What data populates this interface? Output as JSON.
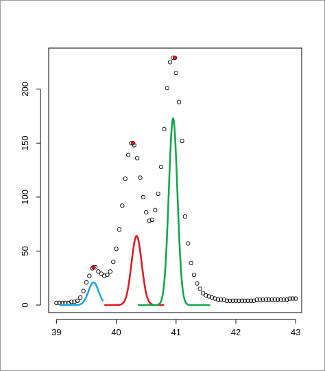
{
  "chart_data": {
    "type": "scatter",
    "title": "",
    "xlabel": "",
    "ylabel": "",
    "xlim": [
      38.87,
      43.1
    ],
    "ylim": [
      -7,
      238
    ],
    "x_ticks": [
      39,
      40,
      41,
      42,
      43
    ],
    "x_tick_labels": [
      "39",
      "40",
      "41",
      "42",
      "43"
    ],
    "y_ticks": [
      0,
      50,
      100,
      150,
      200
    ],
    "y_tick_labels": [
      "0",
      "50",
      "100",
      "150",
      "200"
    ],
    "grid": false,
    "legend": "none",
    "points": {
      "x": [
        39.0,
        39.05,
        39.1,
        39.15,
        39.2,
        39.25,
        39.3,
        39.35,
        39.4,
        39.45,
        39.5,
        39.55,
        39.6,
        39.65,
        39.7,
        39.75,
        39.8,
        39.85,
        39.9,
        39.95,
        40.0,
        40.05,
        40.1,
        40.15,
        40.2,
        40.25,
        40.3,
        40.35,
        40.4,
        40.45,
        40.5,
        40.55,
        40.6,
        40.65,
        40.7,
        40.75,
        40.8,
        40.85,
        40.9,
        40.95,
        41.0,
        41.05,
        41.1,
        41.15,
        41.2,
        41.25,
        41.3,
        41.35,
        41.4,
        41.45,
        41.5,
        41.55,
        41.6,
        41.65,
        41.7,
        41.75,
        41.8,
        41.85,
        41.9,
        41.95,
        42.0,
        42.05,
        42.1,
        42.15,
        42.2,
        42.25,
        42.3,
        42.35,
        42.4,
        42.45,
        42.5,
        42.55,
        42.6,
        42.65,
        42.7,
        42.75,
        42.8,
        42.85,
        42.9,
        42.95,
        43.0
      ],
      "y": [
        2,
        2,
        2,
        2,
        2,
        3,
        3,
        4,
        7,
        13,
        21,
        27,
        34,
        35,
        31,
        29,
        27,
        28,
        31,
        40,
        52,
        70,
        92,
        117,
        139,
        150,
        148,
        136,
        118,
        100,
        86,
        78,
        79,
        88,
        103,
        128,
        163,
        201,
        225,
        229,
        215,
        188,
        152,
        82,
        57,
        39,
        28,
        20,
        15,
        11,
        9,
        8,
        7,
        6,
        5,
        5,
        5,
        4,
        4,
        4,
        4,
        4,
        4,
        4,
        4,
        4,
        4,
        5,
        5,
        5,
        5,
        5,
        5,
        5,
        5,
        5,
        5,
        5,
        6,
        6,
        6
      ],
      "stroke": "#000000"
    },
    "peak_markers": {
      "x": [
        39.62,
        40.28,
        40.98
      ],
      "y": [
        35,
        150,
        229
      ],
      "fill": "#e8141c"
    },
    "series": [
      {
        "center": 39.62,
        "height": 21,
        "width": 0.085,
        "xrange": [
          39.05,
          39.78
        ],
        "color": "#1aa7e0"
      },
      {
        "center": 40.34,
        "height": 64,
        "width": 0.085,
        "xrange": [
          39.8,
          40.8
        ],
        "color": "#e11b22"
      },
      {
        "center": 40.95,
        "height": 173,
        "width": 0.072,
        "xrange": [
          40.36,
          41.57
        ],
        "color": "#12a84a"
      }
    ]
  }
}
